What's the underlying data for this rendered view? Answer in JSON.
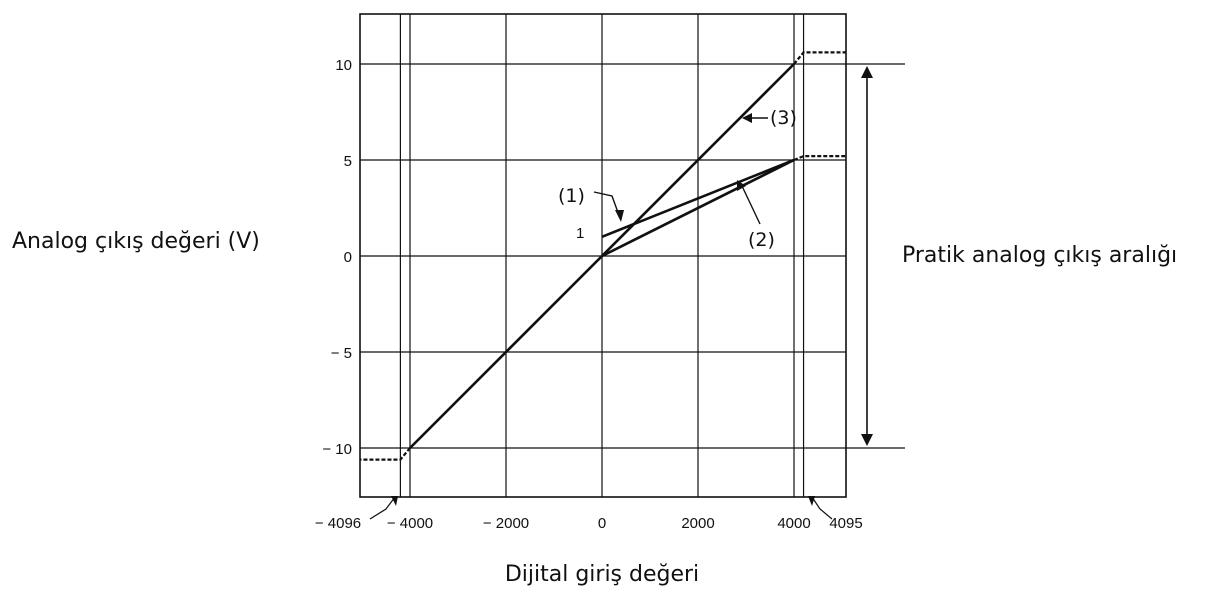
{
  "chart_data": {
    "type": "line",
    "ylabel": "Analog çıkış değeri (V)",
    "xlabel": "Dijital giriş değeri",
    "range_label": "Pratik analog çıkış aralığı",
    "xlim": [
      -4500,
      5200
    ],
    "ylim": [
      -12.5,
      12.5
    ],
    "x_ticks": [
      -4000,
      -2000,
      0,
      2000,
      4000
    ],
    "x_tick_labels": [
      "− 4000",
      "− 2000",
      "0",
      "2000",
      "4000"
    ],
    "y_ticks": [
      10,
      5,
      0,
      -5,
      -10
    ],
    "y_tick_labels": [
      "10",
      "5",
      "0",
      "− 5",
      "− 10"
    ],
    "extra_x_labels": {
      "min": "− 4096",
      "max": "4095"
    },
    "offset_label": "1",
    "series": [
      {
        "name": "(1)",
        "x": [
          0,
          4000
        ],
        "y": [
          1,
          5
        ]
      },
      {
        "name": "(2)",
        "x": [
          0,
          4000
        ],
        "y": [
          0,
          5
        ]
      },
      {
        "name": "(3)",
        "x": [
          -4000,
          4000
        ],
        "y": [
          -10,
          10
        ]
      }
    ],
    "saturation": [
      {
        "x": [
          -4096,
          -4500
        ],
        "y": [
          -10,
          -10.5
        ]
      },
      {
        "x": [
          4095,
          5000
        ],
        "y": [
          5,
          5
        ]
      },
      {
        "x": [
          4095,
          5000
        ],
        "y": [
          10,
          10
        ]
      }
    ],
    "grid": true,
    "legend": "none"
  }
}
